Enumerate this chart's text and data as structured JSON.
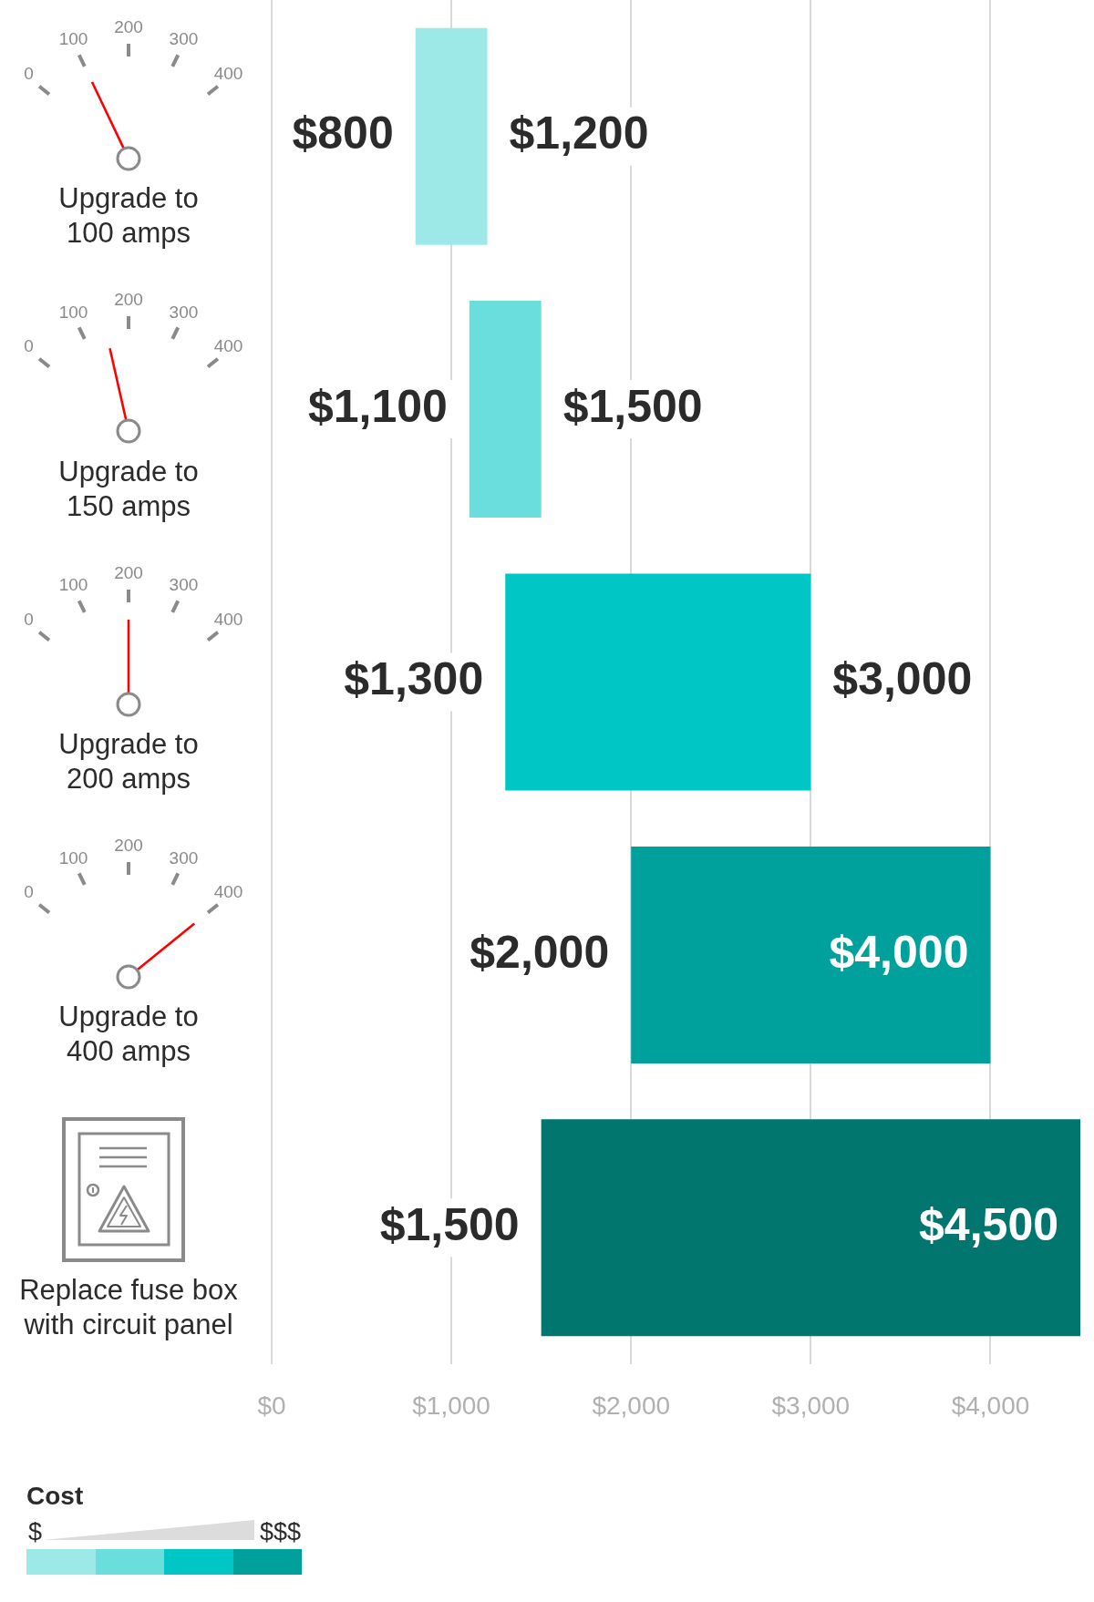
{
  "chart_data": {
    "type": "bar",
    "orientation": "horizontal",
    "categories": [
      "Upgrade to 100 amps",
      "Upgrade to 150 amps",
      "Upgrade to 200 amps",
      "Upgrade to 400 amps",
      "Replace fuse box with circuit panel"
    ],
    "base": [
      800,
      1100,
      1300,
      2000,
      1500
    ],
    "values": [
      400,
      400,
      1700,
      2000,
      3000
    ],
    "colors": [
      "#9ce9e8",
      "#6adedc",
      "#00c6c6",
      "#00a09d",
      "#00766f"
    ],
    "xlim": [
      0,
      4500
    ],
    "xticks": [
      {
        "value": 0,
        "label": "$0"
      },
      {
        "value": 1000,
        "label": "$1,000"
      },
      {
        "value": 2000,
        "label": "$2,000"
      },
      {
        "value": 3000,
        "label": "$3,000"
      },
      {
        "value": 4000,
        "label": "$4,000"
      }
    ],
    "grid": "x",
    "legend_title": "Cost",
    "annotations": [
      {
        "text": "$800",
        "x": 800,
        "y": "Upgrade to 100 amps"
      },
      {
        "text": "$1,200",
        "x": 1200,
        "y": "Upgrade to 100 amps"
      },
      {
        "text": "$1,100",
        "x": 1100,
        "y": "Upgrade to 150 amps"
      },
      {
        "text": "$1,500",
        "x": 1500,
        "y": "Upgrade to 150 amps"
      },
      {
        "text": "$1,300",
        "x": 1300,
        "y": "Upgrade to 200 amps"
      },
      {
        "text": "$3,000",
        "x": 3000,
        "y": "Upgrade to 200 amps"
      },
      {
        "text": "$2,000",
        "x": 2000,
        "y": "Upgrade to 400 amps"
      },
      {
        "text": "$4,000",
        "x": 4000,
        "y": "Upgrade to 400 amps"
      },
      {
        "text": "$1,500",
        "x": 1500,
        "y": "Replace fuse box with circuit panel"
      },
      {
        "text": "$4,500",
        "x": 4500,
        "y": "Replace fuse box with circuit panel"
      },
      "0",
      "100",
      "200",
      "300",
      "400",
      "$",
      "$$$"
    ]
  }
}
